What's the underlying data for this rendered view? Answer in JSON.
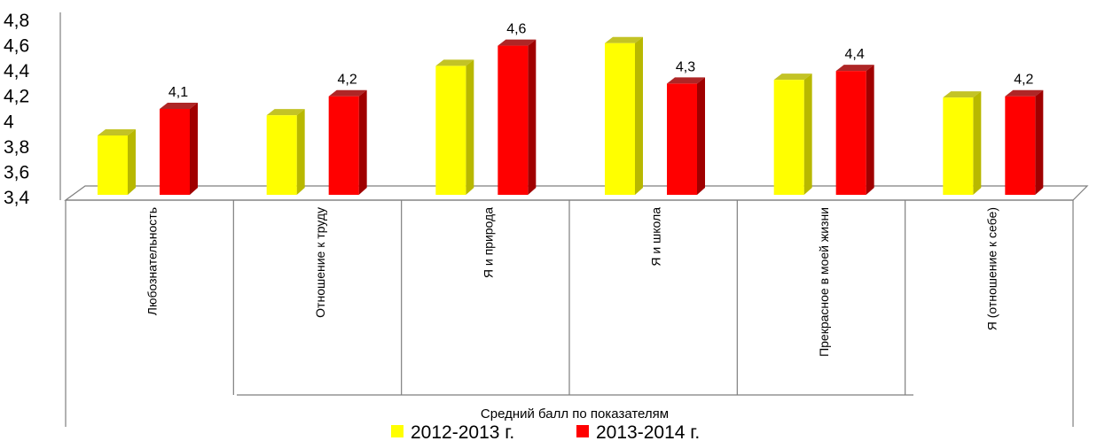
{
  "chart_data": {
    "type": "bar",
    "title": "",
    "xlabel": "",
    "ylabel": "",
    "ylim": [
      3.4,
      4.8
    ],
    "yticks": [
      "3,4",
      "3,6",
      "3,8",
      "4",
      "4,2",
      "4,4",
      "4,6",
      "4,8"
    ],
    "yticks_values": [
      3.4,
      3.6,
      3.8,
      4.0,
      4.2,
      4.4,
      4.6,
      4.8
    ],
    "categories": [
      "Любознательность",
      "Отношение к труду",
      "Я и природа",
      "Я и школа",
      "Прекрасное в моей жизни",
      "Я (отношение к себе)"
    ],
    "series": [
      {
        "name": "2012-2013 г.",
        "color": "#ffff00",
        "side_color": "#b8b800",
        "values": [
          3.89,
          4.05,
          4.44,
          4.62,
          4.33,
          4.19
        ],
        "labels": [
          "",
          "",
          "",
          "",
          "",
          ""
        ]
      },
      {
        "name": "2013-2014 г.",
        "color": "#ff0000",
        "side_color": "#a00000",
        "values": [
          4.1,
          4.2,
          4.6,
          4.3,
          4.4,
          4.2
        ],
        "labels": [
          "4,1",
          "4,2",
          "4,6",
          "4,3",
          "4,4",
          "4,2"
        ]
      }
    ],
    "legend_title": "Средний балл по показателям",
    "legend_position": "bottom",
    "grid": false
  }
}
